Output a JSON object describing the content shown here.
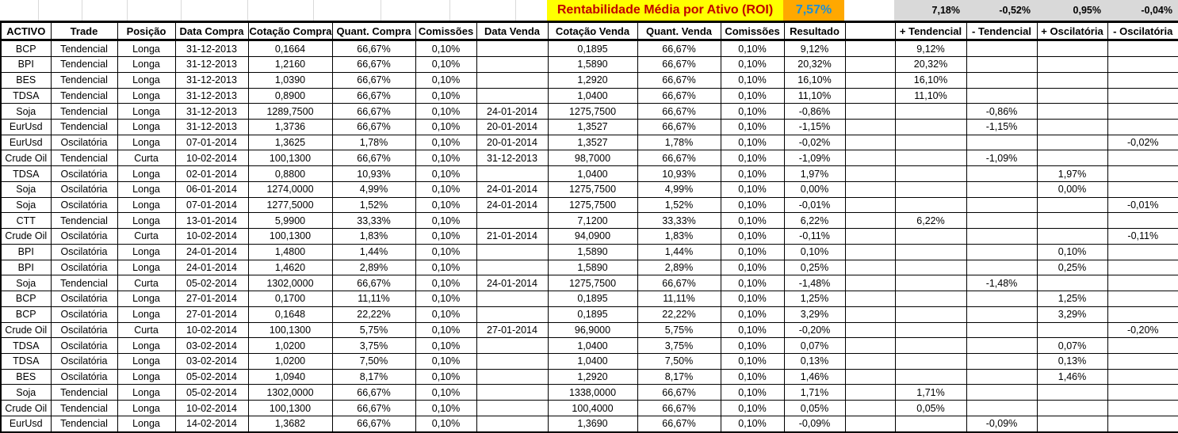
{
  "header": {
    "title": "Rentabilidade Média por Ativo (ROI)",
    "roi_value": "7,57%",
    "summary": {
      "plus_tendencial": "7,18%",
      "minus_tendencial": "-0,52%",
      "plus_oscilatoria": "0,95%",
      "minus_oscilatoria": "-0,04%"
    }
  },
  "colors": {
    "title_bg": "#FFFF00",
    "title_text": "#C00000",
    "roi_bg": "#FFA800",
    "roi_text": "#1E8FD5",
    "summary_bg": "#D9D9D9",
    "open_sell_text": "#FF0000",
    "open_result_text": "#1E8FD5",
    "closed_text": "#000000"
  },
  "table": {
    "headers": [
      "ACTIVO",
      "Trade",
      "Posição",
      "Data Compra",
      "Cotação Compra",
      "Quant. Compra",
      "Comissões",
      "Data Venda",
      "Cotação Venda",
      "Quant. Venda",
      "Comissões",
      "Resultado",
      "",
      "+ Tendencial",
      "- Tendencial",
      "+ Oscilatória",
      "- Oscilatória"
    ],
    "rows": [
      {
        "activo": "BCP",
        "trade": "Tendencial",
        "posicao": "Longa",
        "data_compra": "31-12-2013",
        "cotacao_compra": "0,1664",
        "quant_compra": "66,67%",
        "comissoes_compra": "0,10%",
        "data_venda": "",
        "cotacao_venda": "0,1895",
        "quant_venda": "66,67%",
        "comissoes_venda": "0,10%",
        "resultado": "9,12%",
        "plus_tendencial": "9,12%",
        "minus_tendencial": "",
        "plus_oscilatoria": "",
        "minus_oscilatoria": "",
        "open": true
      },
      {
        "activo": "BPI",
        "trade": "Tendencial",
        "posicao": "Longa",
        "data_compra": "31-12-2013",
        "cotacao_compra": "1,2160",
        "quant_compra": "66,67%",
        "comissoes_compra": "0,10%",
        "data_venda": "",
        "cotacao_venda": "1,5890",
        "quant_venda": "66,67%",
        "comissoes_venda": "0,10%",
        "resultado": "20,32%",
        "plus_tendencial": "20,32%",
        "minus_tendencial": "",
        "plus_oscilatoria": "",
        "minus_oscilatoria": "",
        "open": true
      },
      {
        "activo": "BES",
        "trade": "Tendencial",
        "posicao": "Longa",
        "data_compra": "31-12-2013",
        "cotacao_compra": "1,0390",
        "quant_compra": "66,67%",
        "comissoes_compra": "0,10%",
        "data_venda": "",
        "cotacao_venda": "1,2920",
        "quant_venda": "66,67%",
        "comissoes_venda": "0,10%",
        "resultado": "16,10%",
        "plus_tendencial": "16,10%",
        "minus_tendencial": "",
        "plus_oscilatoria": "",
        "minus_oscilatoria": "",
        "open": true
      },
      {
        "activo": "TDSA",
        "trade": "Tendencial",
        "posicao": "Longa",
        "data_compra": "31-12-2013",
        "cotacao_compra": "0,8900",
        "quant_compra": "66,67%",
        "comissoes_compra": "0,10%",
        "data_venda": "",
        "cotacao_venda": "1,0400",
        "quant_venda": "66,67%",
        "comissoes_venda": "0,10%",
        "resultado": "11,10%",
        "plus_tendencial": "11,10%",
        "minus_tendencial": "",
        "plus_oscilatoria": "",
        "minus_oscilatoria": "",
        "open": true
      },
      {
        "activo": "Soja",
        "trade": "Tendencial",
        "posicao": "Longa",
        "data_compra": "31-12-2013",
        "cotacao_compra": "1289,7500",
        "quant_compra": "66,67%",
        "comissoes_compra": "0,10%",
        "data_venda": "24-01-2014",
        "cotacao_venda": "1275,7500",
        "quant_venda": "66,67%",
        "comissoes_venda": "0,10%",
        "resultado": "-0,86%",
        "plus_tendencial": "",
        "minus_tendencial": "-0,86%",
        "plus_oscilatoria": "",
        "minus_oscilatoria": "",
        "open": false
      },
      {
        "activo": "EurUsd",
        "trade": "Tendencial",
        "posicao": "Longa",
        "data_compra": "31-12-2013",
        "cotacao_compra": "1,3736",
        "quant_compra": "66,67%",
        "comissoes_compra": "0,10%",
        "data_venda": "20-01-2014",
        "cotacao_venda": "1,3527",
        "quant_venda": "66,67%",
        "comissoes_venda": "0,10%",
        "resultado": "-1,15%",
        "plus_tendencial": "",
        "minus_tendencial": "-1,15%",
        "plus_oscilatoria": "",
        "minus_oscilatoria": "",
        "open": false
      },
      {
        "activo": "EurUsd",
        "trade": "Oscilatória",
        "posicao": "Longa",
        "data_compra": "07-01-2014",
        "cotacao_compra": "1,3625",
        "quant_compra": "1,78%",
        "comissoes_compra": "0,10%",
        "data_venda": "20-01-2014",
        "cotacao_venda": "1,3527",
        "quant_venda": "1,78%",
        "comissoes_venda": "0,10%",
        "resultado": "-0,02%",
        "plus_tendencial": "",
        "minus_tendencial": "",
        "plus_oscilatoria": "",
        "minus_oscilatoria": "-0,02%",
        "open": false
      },
      {
        "activo": "Crude Oil",
        "trade": "Tendencial",
        "posicao": "Curta",
        "data_compra": "10-02-2014",
        "cotacao_compra": "100,1300",
        "quant_compra": "66,67%",
        "comissoes_compra": "0,10%",
        "data_venda": "31-12-2013",
        "cotacao_venda": "98,7000",
        "quant_venda": "66,67%",
        "comissoes_venda": "0,10%",
        "resultado": "-1,09%",
        "plus_tendencial": "",
        "minus_tendencial": "-1,09%",
        "plus_oscilatoria": "",
        "minus_oscilatoria": "",
        "open": false
      },
      {
        "activo": "TDSA",
        "trade": "Oscilatória",
        "posicao": "Longa",
        "data_compra": "02-01-2014",
        "cotacao_compra": "0,8800",
        "quant_compra": "10,93%",
        "comissoes_compra": "0,10%",
        "data_venda": "",
        "cotacao_venda": "1,0400",
        "quant_venda": "10,93%",
        "comissoes_venda": "0,10%",
        "resultado": "1,97%",
        "plus_tendencial": "",
        "minus_tendencial": "",
        "plus_oscilatoria": "1,97%",
        "minus_oscilatoria": "",
        "open": true
      },
      {
        "activo": "Soja",
        "trade": "Oscilatória",
        "posicao": "Longa",
        "data_compra": "06-01-2014",
        "cotacao_compra": "1274,0000",
        "quant_compra": "4,99%",
        "comissoes_compra": "0,10%",
        "data_venda": "24-01-2014",
        "cotacao_venda": "1275,7500",
        "quant_venda": "4,99%",
        "comissoes_venda": "0,10%",
        "resultado": "0,00%",
        "plus_tendencial": "",
        "minus_tendencial": "",
        "plus_oscilatoria": "0,00%",
        "minus_oscilatoria": "",
        "open": false
      },
      {
        "activo": "Soja",
        "trade": "Oscilatória",
        "posicao": "Longa",
        "data_compra": "07-01-2014",
        "cotacao_compra": "1277,5000",
        "quant_compra": "1,52%",
        "comissoes_compra": "0,10%",
        "data_venda": "24-01-2014",
        "cotacao_venda": "1275,7500",
        "quant_venda": "1,52%",
        "comissoes_venda": "0,10%",
        "resultado": "-0,01%",
        "plus_tendencial": "",
        "minus_tendencial": "",
        "plus_oscilatoria": "",
        "minus_oscilatoria": "-0,01%",
        "open": false
      },
      {
        "activo": "CTT",
        "trade": "Tendencial",
        "posicao": "Longa",
        "data_compra": "13-01-2014",
        "cotacao_compra": "5,9900",
        "quant_compra": "33,33%",
        "comissoes_compra": "0,10%",
        "data_venda": "",
        "cotacao_venda": "7,1200",
        "quant_venda": "33,33%",
        "comissoes_venda": "0,10%",
        "resultado": "6,22%",
        "plus_tendencial": "6,22%",
        "minus_tendencial": "",
        "plus_oscilatoria": "",
        "minus_oscilatoria": "",
        "open": true
      },
      {
        "activo": "Crude Oil",
        "trade": "Oscilatória",
        "posicao": "Curta",
        "data_compra": "10-02-2014",
        "cotacao_compra": "100,1300",
        "quant_compra": "1,83%",
        "comissoes_compra": "0,10%",
        "data_venda": "21-01-2014",
        "cotacao_venda": "94,0900",
        "quant_venda": "1,83%",
        "comissoes_venda": "0,10%",
        "resultado": "-0,11%",
        "plus_tendencial": "",
        "minus_tendencial": "",
        "plus_oscilatoria": "",
        "minus_oscilatoria": "-0,11%",
        "open": false
      },
      {
        "activo": "BPI",
        "trade": "Oscilatória",
        "posicao": "Longa",
        "data_compra": "24-01-2014",
        "cotacao_compra": "1,4800",
        "quant_compra": "1,44%",
        "comissoes_compra": "0,10%",
        "data_venda": "",
        "cotacao_venda": "1,5890",
        "quant_venda": "1,44%",
        "comissoes_venda": "0,10%",
        "resultado": "0,10%",
        "plus_tendencial": "",
        "minus_tendencial": "",
        "plus_oscilatoria": "0,10%",
        "minus_oscilatoria": "",
        "open": true
      },
      {
        "activo": "BPI",
        "trade": "Oscilatória",
        "posicao": "Longa",
        "data_compra": "24-01-2014",
        "cotacao_compra": "1,4620",
        "quant_compra": "2,89%",
        "comissoes_compra": "0,10%",
        "data_venda": "",
        "cotacao_venda": "1,5890",
        "quant_venda": "2,89%",
        "comissoes_venda": "0,10%",
        "resultado": "0,25%",
        "plus_tendencial": "",
        "minus_tendencial": "",
        "plus_oscilatoria": "0,25%",
        "minus_oscilatoria": "",
        "open": true
      },
      {
        "activo": "Soja",
        "trade": "Tendencial",
        "posicao": "Curta",
        "data_compra": "05-02-2014",
        "cotacao_compra": "1302,0000",
        "quant_compra": "66,67%",
        "comissoes_compra": "0,10%",
        "data_venda": "24-01-2014",
        "cotacao_venda": "1275,7500",
        "quant_venda": "66,67%",
        "comissoes_venda": "0,10%",
        "resultado": "-1,48%",
        "plus_tendencial": "",
        "minus_tendencial": "-1,48%",
        "plus_oscilatoria": "",
        "minus_oscilatoria": "",
        "open": false
      },
      {
        "activo": "BCP",
        "trade": "Oscilatória",
        "posicao": "Longa",
        "data_compra": "27-01-2014",
        "cotacao_compra": "0,1700",
        "quant_compra": "11,11%",
        "comissoes_compra": "0,10%",
        "data_venda": "",
        "cotacao_venda": "0,1895",
        "quant_venda": "11,11%",
        "comissoes_venda": "0,10%",
        "resultado": "1,25%",
        "plus_tendencial": "",
        "minus_tendencial": "",
        "plus_oscilatoria": "1,25%",
        "minus_oscilatoria": "",
        "open": true
      },
      {
        "activo": "BCP",
        "trade": "Oscilatória",
        "posicao": "Longa",
        "data_compra": "27-01-2014",
        "cotacao_compra": "0,1648",
        "quant_compra": "22,22%",
        "comissoes_compra": "0,10%",
        "data_venda": "",
        "cotacao_venda": "0,1895",
        "quant_venda": "22,22%",
        "comissoes_venda": "0,10%",
        "resultado": "3,29%",
        "plus_tendencial": "",
        "minus_tendencial": "",
        "plus_oscilatoria": "3,29%",
        "minus_oscilatoria": "",
        "open": true
      },
      {
        "activo": "Crude Oil",
        "trade": "Oscilatória",
        "posicao": "Curta",
        "data_compra": "10-02-2014",
        "cotacao_compra": "100,1300",
        "quant_compra": "5,75%",
        "comissoes_compra": "0,10%",
        "data_venda": "27-01-2014",
        "cotacao_venda": "96,9000",
        "quant_venda": "5,75%",
        "comissoes_venda": "0,10%",
        "resultado": "-0,20%",
        "plus_tendencial": "",
        "minus_tendencial": "",
        "plus_oscilatoria": "",
        "minus_oscilatoria": "-0,20%",
        "open": false
      },
      {
        "activo": "TDSA",
        "trade": "Oscilatória",
        "posicao": "Longa",
        "data_compra": "03-02-2014",
        "cotacao_compra": "1,0200",
        "quant_compra": "3,75%",
        "comissoes_compra": "0,10%",
        "data_venda": "",
        "cotacao_venda": "1,0400",
        "quant_venda": "3,75%",
        "comissoes_venda": "0,10%",
        "resultado": "0,07%",
        "plus_tendencial": "",
        "minus_tendencial": "",
        "plus_oscilatoria": "0,07%",
        "minus_oscilatoria": "",
        "open": true
      },
      {
        "activo": "TDSA",
        "trade": "Oscilatória",
        "posicao": "Longa",
        "data_compra": "03-02-2014",
        "cotacao_compra": "1,0200",
        "quant_compra": "7,50%",
        "comissoes_compra": "0,10%",
        "data_venda": "",
        "cotacao_venda": "1,0400",
        "quant_venda": "7,50%",
        "comissoes_venda": "0,10%",
        "resultado": "0,13%",
        "plus_tendencial": "",
        "minus_tendencial": "",
        "plus_oscilatoria": "0,13%",
        "minus_oscilatoria": "",
        "open": true
      },
      {
        "activo": "BES",
        "trade": "Oscilatória",
        "posicao": "Longa",
        "data_compra": "05-02-2014",
        "cotacao_compra": "1,0940",
        "quant_compra": "8,17%",
        "comissoes_compra": "0,10%",
        "data_venda": "",
        "cotacao_venda": "1,2920",
        "quant_venda": "8,17%",
        "comissoes_venda": "0,10%",
        "resultado": "1,46%",
        "plus_tendencial": "",
        "minus_tendencial": "",
        "plus_oscilatoria": "1,46%",
        "minus_oscilatoria": "",
        "open": true
      },
      {
        "activo": "Soja",
        "trade": "Tendencial",
        "posicao": "Longa",
        "data_compra": "05-02-2014",
        "cotacao_compra": "1302,0000",
        "quant_compra": "66,67%",
        "comissoes_compra": "0,10%",
        "data_venda": "",
        "cotacao_venda": "1338,0000",
        "quant_venda": "66,67%",
        "comissoes_venda": "0,10%",
        "resultado": "1,71%",
        "plus_tendencial": "1,71%",
        "minus_tendencial": "",
        "plus_oscilatoria": "",
        "minus_oscilatoria": "",
        "open": true
      },
      {
        "activo": "Crude Oil",
        "trade": "Tendencial",
        "posicao": "Longa",
        "data_compra": "10-02-2014",
        "cotacao_compra": "100,1300",
        "quant_compra": "66,67%",
        "comissoes_compra": "0,10%",
        "data_venda": "",
        "cotacao_venda": "100,4000",
        "quant_venda": "66,67%",
        "comissoes_venda": "0,10%",
        "resultado": "0,05%",
        "plus_tendencial": "0,05%",
        "minus_tendencial": "",
        "plus_oscilatoria": "",
        "minus_oscilatoria": "",
        "open": true
      },
      {
        "activo": "EurUsd",
        "trade": "Tendencial",
        "posicao": "Longa",
        "data_compra": "14-02-2014",
        "cotacao_compra": "1,3682",
        "quant_compra": "66,67%",
        "comissoes_compra": "0,10%",
        "data_venda": "",
        "cotacao_venda": "1,3690",
        "quant_venda": "66,67%",
        "comissoes_venda": "0,10%",
        "resultado": "-0,09%",
        "plus_tendencial": "",
        "minus_tendencial": "-0,09%",
        "plus_oscilatoria": "",
        "minus_oscilatoria": "",
        "open": true
      }
    ]
  }
}
